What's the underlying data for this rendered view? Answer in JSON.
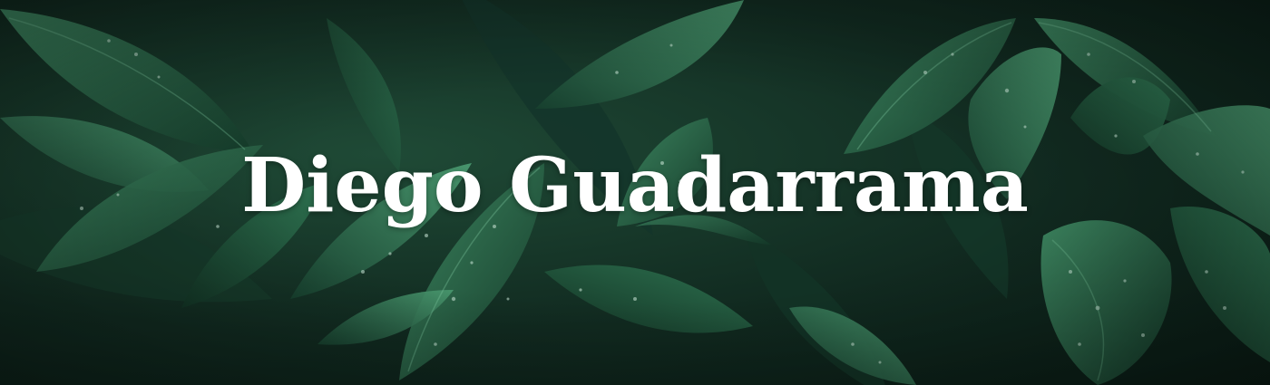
{
  "banner": {
    "title": "Diego Guadarrama",
    "background_image": "leaf-foliage-photo",
    "colors": {
      "text": "#ffffff",
      "leaf_dark": "#0f2a1f",
      "leaf_mid": "#1f5a3e",
      "leaf_light": "#3f8a63"
    }
  }
}
